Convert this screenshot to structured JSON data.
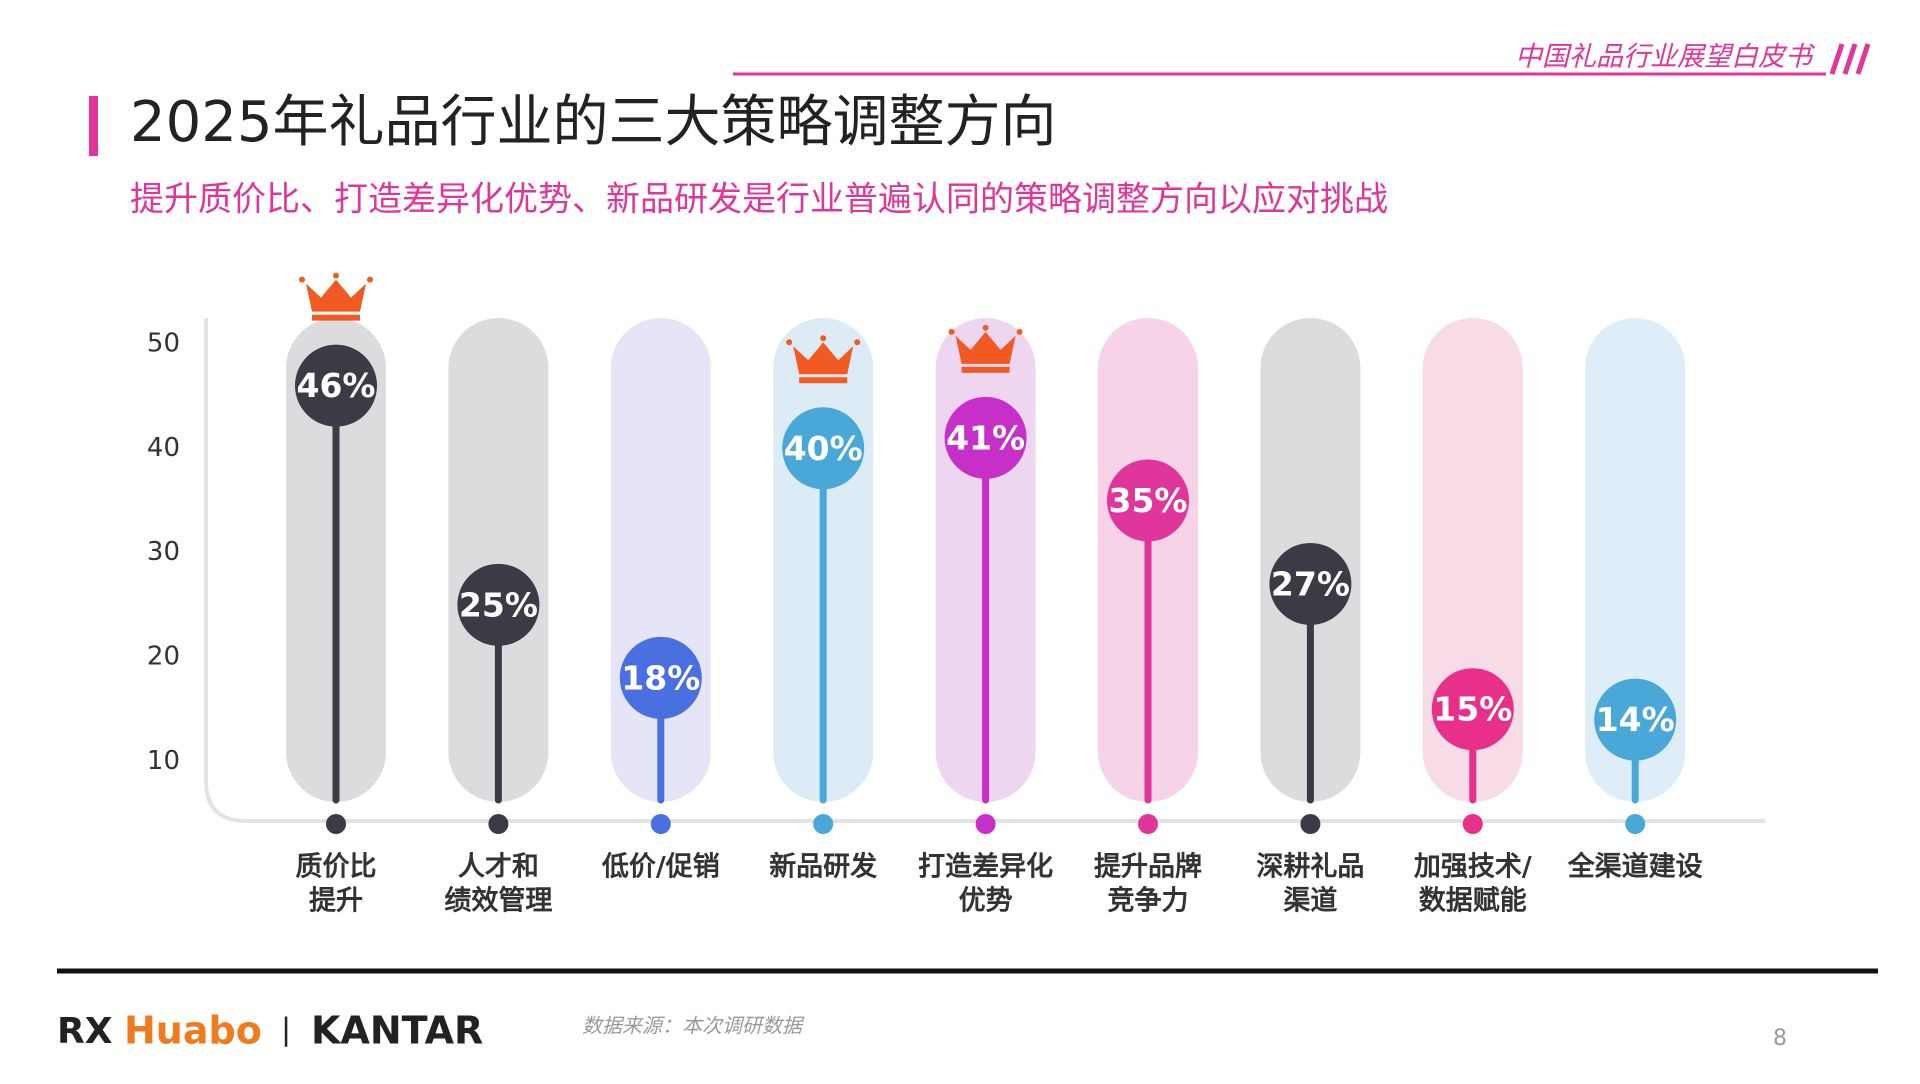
{
  "header": {
    "report": "中国礼品行业展望白皮书",
    "title": "2025年礼品行业的三大策略调整方向",
    "subtitle": "提升质价比、打造差异化优势、新品研发是行业普遍认同的策略调整方向以应对挑战"
  },
  "chart_data": {
    "type": "lollipop",
    "categories": [
      [
        "质价比",
        "提升"
      ],
      [
        "人才和",
        "绩效管理"
      ],
      [
        "低价/促销"
      ],
      [
        "新品研发"
      ],
      [
        "打造差异化",
        "优势"
      ],
      [
        "提升品牌",
        "竞争力"
      ],
      [
        "深耕礼品",
        "渠道"
      ],
      [
        "加强技术/",
        "数据赋能"
      ],
      [
        "全渠道建设"
      ]
    ],
    "values": [
      46,
      25,
      18,
      40,
      41,
      35,
      27,
      15,
      14
    ],
    "value_labels": [
      "46%",
      "25%",
      "18%",
      "40%",
      "41%",
      "35%",
      "27%",
      "15%",
      "14%"
    ],
    "colors": [
      "#3d3a45",
      "#3d3a45",
      "#4a6fe0",
      "#4aa8d8",
      "#c62fc8",
      "#e0359a",
      "#3d3a45",
      "#e8308a",
      "#4aa8d8"
    ],
    "band_colors": [
      "#dcdcdf",
      "#dcdcdf",
      "#e6e4f7",
      "#dcebf5",
      "#efd6f0",
      "#f6d3e6",
      "#dcdcdf",
      "#f7dbe7",
      "#deedf7"
    ],
    "crowned": [
      true,
      false,
      false,
      true,
      true,
      false,
      false,
      false,
      false
    ],
    "ylim": [
      4,
      52
    ],
    "yticks": [
      10,
      20,
      30,
      40,
      50
    ],
    "grid": false
  },
  "footer": {
    "logo_rx": "RX",
    "logo_huabo": "Huabo",
    "separator": "|",
    "logo_kantar": "KANTAR",
    "source": "数据来源：本次调研数据",
    "page": "8"
  }
}
